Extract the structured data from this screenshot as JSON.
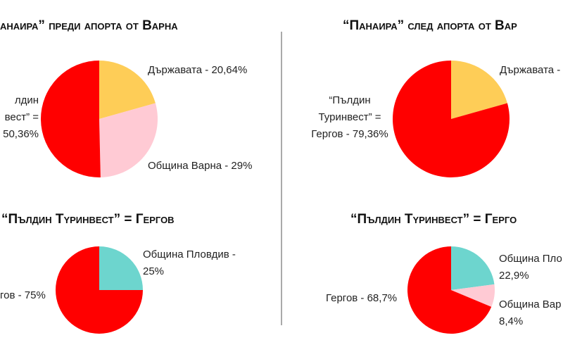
{
  "chart_data": [
    {
      "type": "pie",
      "title": "анаира” преди апорта от Варна",
      "labels": [
        [
          "Държавата - 20,64%"
        ],
        [
          "Община Варна - 29%"
        ],
        [
          "лдин",
          "вест” =",
          "50,36%"
        ]
      ],
      "values": [
        20.64,
        29,
        50.36
      ],
      "colors": [
        "#fecd57",
        "#ffcad4",
        "#ff0000"
      ]
    },
    {
      "type": "pie",
      "title": "“Панаира” след апорта от Вар",
      "labels": [
        [
          "Държавата -"
        ],
        [
          "“Пълдин",
          "Туринвест” =",
          "Гергов - 79,36%"
        ]
      ],
      "values": [
        20.64,
        79.36
      ],
      "colors": [
        "#fecd57",
        "#ff0000"
      ]
    },
    {
      "type": "pie",
      "title": "“Пълдин Тyринвест” =  Гергов",
      "labels": [
        [
          "Община Пловдив -",
          "25%"
        ],
        [
          "гов - 75%"
        ]
      ],
      "values": [
        25,
        75
      ],
      "colors": [
        "#6dd5ce",
        "#ff0000"
      ]
    },
    {
      "type": "pie",
      "title": "“Пълдин Тyринвест” =  Герго",
      "labels": [
        [
          "Община Пло",
          "22,9%"
        ],
        [
          "Община Вар",
          "8,4%"
        ],
        [
          "Гергов - 68,7%"
        ]
      ],
      "values": [
        22.9,
        8.4,
        68.7
      ],
      "colors": [
        "#6dd5ce",
        "#ffcad4",
        "#ff0000"
      ]
    }
  ]
}
